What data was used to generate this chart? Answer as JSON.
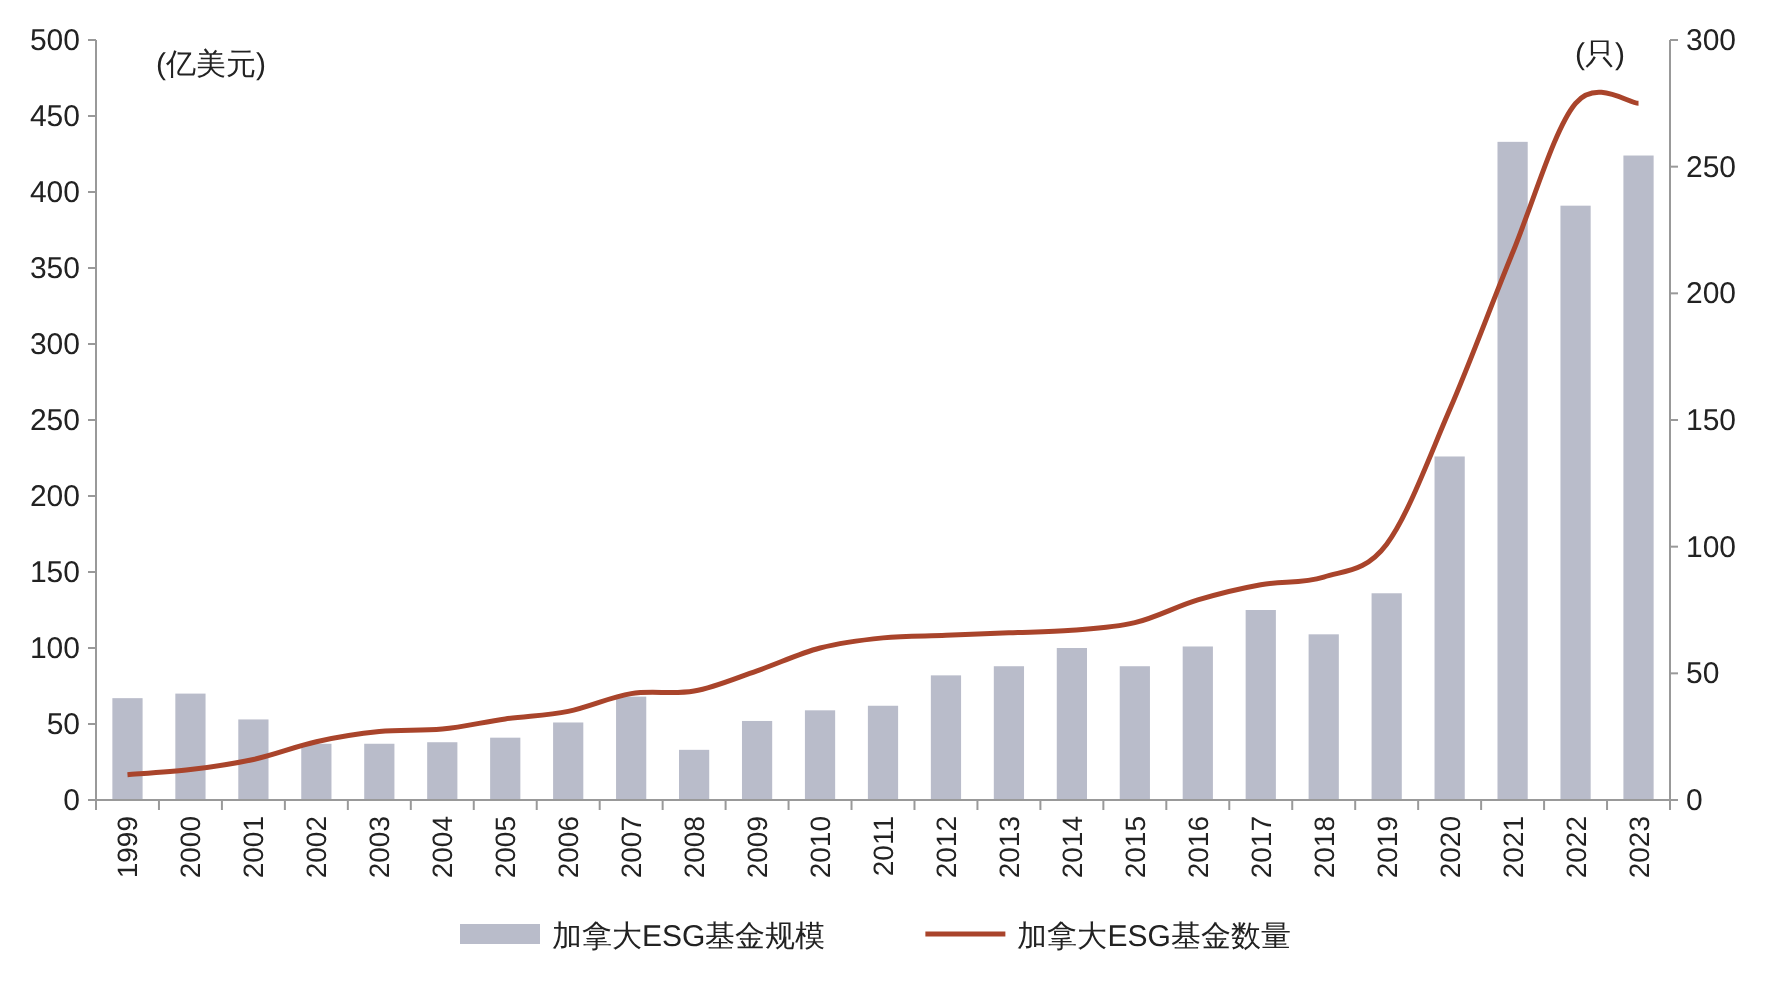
{
  "chart_data": {
    "type": "bar",
    "ylabel": "(亿美元)",
    "y2label": "(只)",
    "categories": [
      "1999",
      "2000",
      "2001",
      "2002",
      "2003",
      "2004",
      "2005",
      "2006",
      "2007",
      "2008",
      "2009",
      "2010",
      "2011",
      "2012",
      "2013",
      "2014",
      "2015",
      "2016",
      "2017",
      "2018",
      "2019",
      "2020",
      "2021",
      "2022",
      "2023"
    ],
    "series": [
      {
        "name": "加拿大ESG基金规模",
        "color": "#b9bcca",
        "values": [
          67,
          70,
          53,
          37,
          37,
          38,
          41,
          51,
          68,
          33,
          52,
          59,
          62,
          82,
          88,
          100,
          88,
          101,
          125,
          109,
          136,
          226,
          433,
          391,
          424
        ]
      },
      {
        "name": "加拿大ESG基金数量",
        "type": "line",
        "axis": "y2",
        "color": "#a9442b",
        "values": [
          10,
          12,
          16,
          23,
          27,
          28,
          32,
          35,
          42,
          43,
          51,
          60,
          64,
          65,
          66,
          67,
          70,
          79,
          85,
          88,
          101,
          154,
          216,
          275,
          275
        ]
      }
    ],
    "ylim": [
      0,
      500
    ],
    "yticks": [
      0,
      50,
      100,
      150,
      200,
      250,
      300,
      350,
      400,
      450,
      500
    ],
    "y2lim": [
      0,
      300
    ],
    "y2ticks": [
      0,
      50,
      100,
      150,
      200,
      250,
      300
    ],
    "legend": "bottom",
    "grid": false
  }
}
